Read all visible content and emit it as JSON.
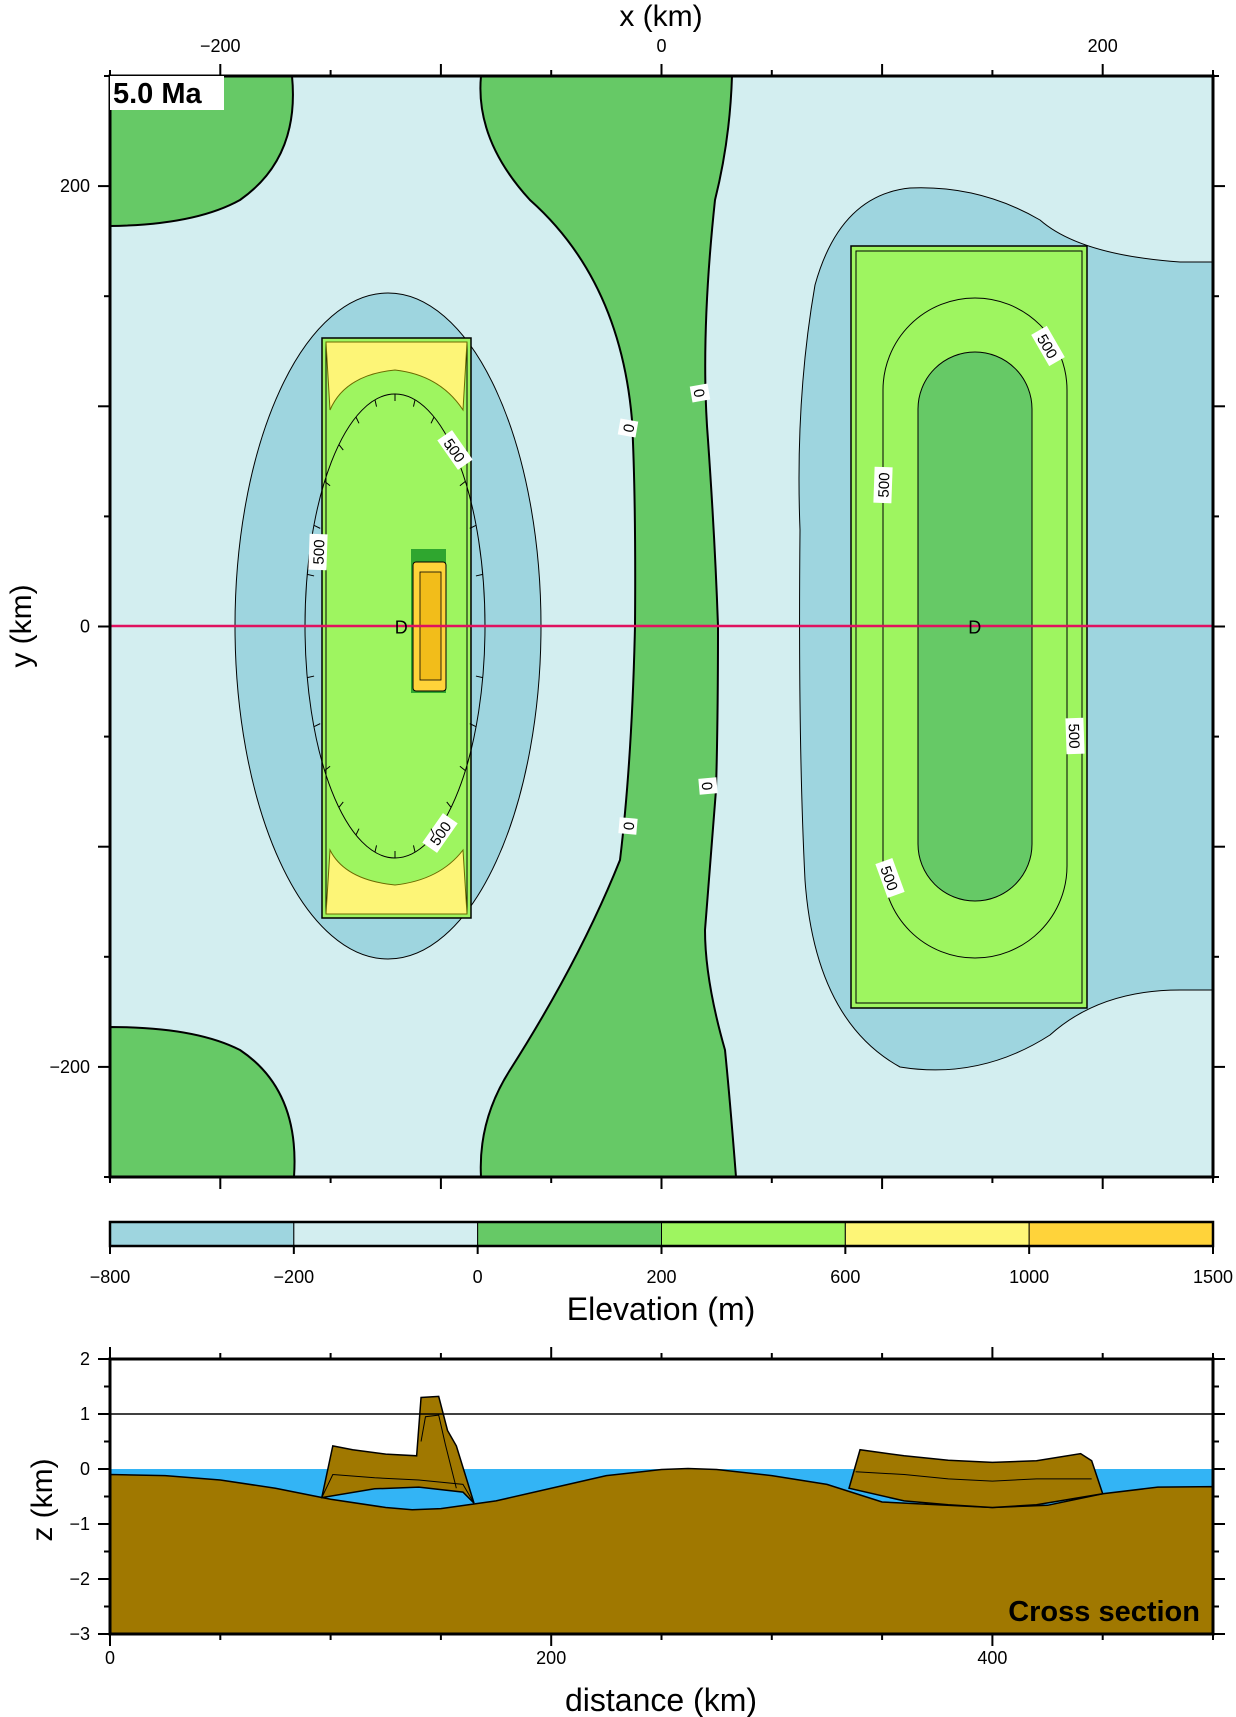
{
  "chart_data": [
    {
      "type": "heatmap",
      "panel": "map",
      "annotation": "5.0 Ma",
      "xlabel": "x (km)",
      "ylabel": "y (km)",
      "xlim": [
        -250,
        250
      ],
      "ylim": [
        -250,
        250
      ],
      "x_ticks": [
        -200,
        0,
        200
      ],
      "y_ticks": [
        -200,
        0,
        200
      ],
      "grid": false,
      "contour_labels": [
        "0",
        "0",
        "0",
        "0",
        "500",
        "500",
        "500",
        "500",
        "500",
        "500",
        "500"
      ],
      "markers": [
        {
          "label": "D",
          "x": -118,
          "y": 0
        },
        {
          "label": "D",
          "x": 142,
          "y": 0
        }
      ],
      "profile_line": {
        "y": 0,
        "x_from": -250,
        "x_to": 250,
        "color": "#e0115f"
      },
      "colors": {
        "deep": "#9ed5df",
        "shallow": "#d3eef0",
        "low_land": "#66c966",
        "mid_land": "#9ef560",
        "high_land": "#fdf577",
        "peak": "#ffd33a"
      }
    },
    {
      "type": "colorbar",
      "label": "Elevation (m)",
      "bounds": [
        -800,
        -200,
        0,
        200,
        600,
        1000,
        1500
      ],
      "tick_labels": [
        "−800",
        "−200",
        "0",
        "200",
        "600",
        "1000",
        "1500"
      ],
      "colors": [
        "#9ed5df",
        "#d3eef0",
        "#66c966",
        "#9ef560",
        "#fdf577",
        "#ffd33a"
      ]
    },
    {
      "type": "area",
      "panel": "cross_section",
      "label": "Cross section",
      "xlabel": "distance (km)",
      "ylabel": "z (km)",
      "xlim": [
        0,
        500
      ],
      "ylim": [
        -3,
        2
      ],
      "x_ticks": [
        0,
        200,
        400
      ],
      "y_ticks": [
        2,
        1,
        0,
        -1,
        -2,
        -3
      ],
      "reference_line_z": 1,
      "colors": {
        "rock": "#a07800",
        "water": "#33b4f5"
      },
      "basement": {
        "x": [
          0,
          25,
          50,
          75,
          100,
          125,
          137,
          150,
          175,
          200,
          225,
          250,
          262,
          275,
          300,
          325,
          350,
          375,
          400,
          425,
          450,
          475,
          500
        ],
        "z": [
          -0.1,
          -0.12,
          -0.2,
          -0.35,
          -0.55,
          -0.7,
          -0.74,
          -0.72,
          -0.58,
          -0.35,
          -0.12,
          -0.01,
          0.01,
          -0.01,
          -0.12,
          -0.28,
          -0.6,
          -0.65,
          -0.7,
          -0.66,
          -0.45,
          -0.33,
          -0.32
        ]
      },
      "upper_blocks": [
        {
          "x": [
            96,
            101,
            110,
            125,
            139,
            141,
            149,
            153,
            157,
            165,
            160,
            140,
            120,
            96
          ],
          "z": [
            -0.52,
            0.42,
            0.35,
            0.27,
            0.24,
            1.3,
            1.32,
            0.7,
            0.42,
            -0.62,
            -0.42,
            -0.33,
            -0.36,
            -0.52
          ]
        },
        {
          "x": [
            335,
            340,
            360,
            380,
            400,
            420,
            440,
            445,
            450,
            420,
            400,
            380,
            360,
            335
          ],
          "z": [
            -0.35,
            0.35,
            0.24,
            0.16,
            0.12,
            0.15,
            0.28,
            0.15,
            -0.45,
            -0.65,
            -0.7,
            -0.65,
            -0.58,
            -0.35
          ]
        }
      ],
      "inner_lines": [
        {
          "x": [
            96,
            101,
            120,
            140,
            160,
            165
          ],
          "z": [
            -0.52,
            -0.1,
            -0.16,
            -0.2,
            -0.28,
            -0.62
          ]
        },
        {
          "x": [
            141,
            143,
            149,
            152,
            157
          ],
          "z": [
            0.5,
            0.95,
            0.98,
            0.45,
            -0.35
          ]
        },
        {
          "x": [
            338,
            360,
            380,
            400,
            420,
            445
          ],
          "z": [
            -0.05,
            -0.1,
            -0.18,
            -0.22,
            -0.18,
            -0.18
          ]
        }
      ]
    }
  ]
}
